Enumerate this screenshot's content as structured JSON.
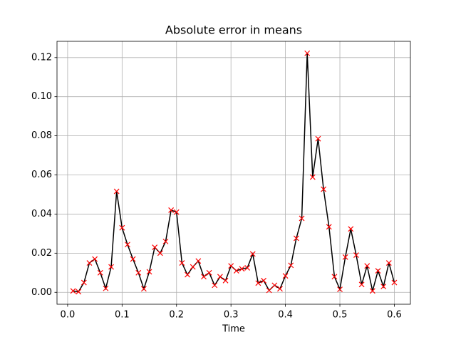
{
  "chart_data": {
    "type": "line",
    "title": "Absolute error in means",
    "x_label": "Time",
    "x": [
      0.01,
      0.02,
      0.03,
      0.04,
      0.05,
      0.06,
      0.07,
      0.08,
      0.09,
      0.1,
      0.11,
      0.12,
      0.13,
      0.14,
      0.15,
      0.16,
      0.17,
      0.18,
      0.19,
      0.2,
      0.21,
      0.22,
      0.23,
      0.24,
      0.25,
      0.26,
      0.27,
      0.28,
      0.29,
      0.3,
      0.31,
      0.32,
      0.33,
      0.34,
      0.35,
      0.36,
      0.37,
      0.38,
      0.39,
      0.4,
      0.41,
      0.42,
      0.43,
      0.44,
      0.45,
      0.46,
      0.47,
      0.48,
      0.49,
      0.5,
      0.51,
      0.52,
      0.53,
      0.54,
      0.55,
      0.56,
      0.57,
      0.58,
      0.59,
      0.6
    ],
    "series": [
      {
        "color": "#000000",
        "marker_color": "#ff0000",
        "values": [
          0.0007,
          0.0003,
          0.005,
          0.015,
          0.017,
          0.01,
          0.002,
          0.013,
          0.0516,
          0.033,
          0.0244,
          0.017,
          0.01,
          0.0018,
          0.0105,
          0.023,
          0.02,
          0.026,
          0.042,
          0.041,
          0.015,
          0.009,
          0.013,
          0.016,
          0.008,
          0.01,
          0.0036,
          0.008,
          0.006,
          0.0135,
          0.011,
          0.012,
          0.0125,
          0.0196,
          0.0047,
          0.006,
          0.001,
          0.0036,
          0.0018,
          0.0084,
          0.0138,
          0.0276,
          0.0378,
          0.1222,
          0.0589,
          0.0785,
          0.0527,
          0.0335,
          0.008,
          0.0015,
          0.018,
          0.0324,
          0.019,
          0.004,
          0.0135,
          0.0007,
          0.011,
          0.003,
          0.015,
          0.005
        ]
      }
    ],
    "xlim": [
      -0.0195,
      0.6295
    ],
    "ylim": [
      -0.0061,
      0.1283
    ],
    "xticks": [
      {
        "value": 0,
        "label": "0.0"
      },
      0.1,
      0.2,
      0.3,
      0.4,
      0.5,
      0.6
    ],
    "yticks": [
      {
        "value": 0,
        "label": "0.00"
      },
      0.02,
      0.04,
      0.06,
      0.08,
      {
        "value": 0.1,
        "label": "0.10"
      },
      0.12
    ],
    "grid": true
  }
}
